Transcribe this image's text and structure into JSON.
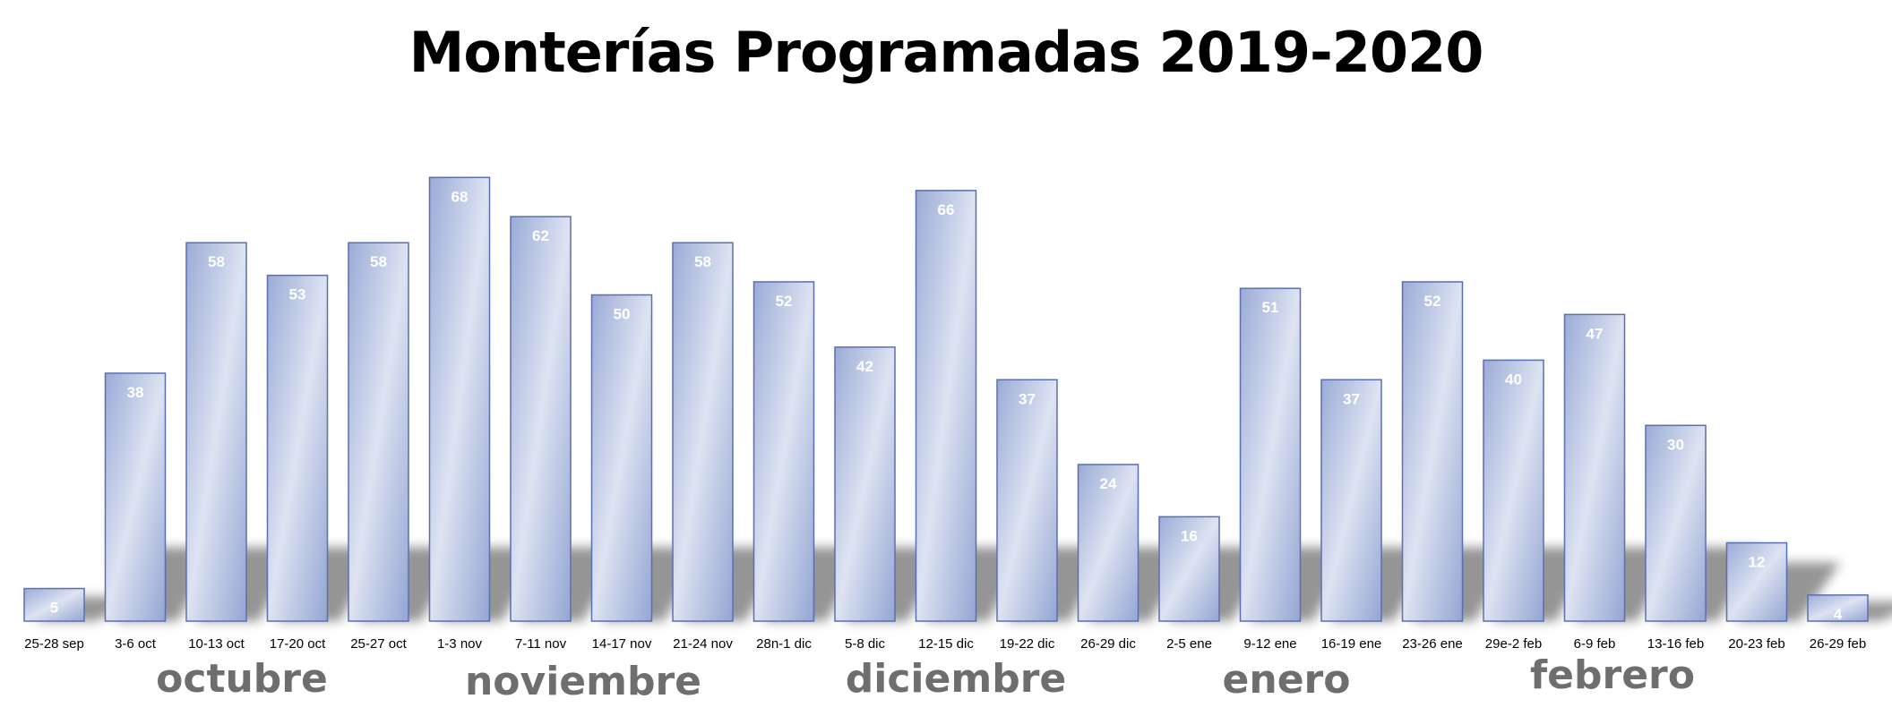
{
  "chart_data": {
    "type": "bar",
    "title": "Monterías Programadas 2019-2020",
    "categories": [
      "25-28 sep",
      "3-6 oct",
      "10-13 oct",
      "17-20 oct",
      "25-27 oct",
      "1-3 nov",
      "7-11 nov",
      "14-17 nov",
      "21-24 nov",
      "28n-1 dic",
      "5-8 dic",
      "12-15 dic",
      "19-22 dic",
      "26-29 dic",
      "2-5 ene",
      "9-12 ene",
      "16-19 ene",
      "23-26 ene",
      "29e-2 feb",
      "6-9 feb",
      "13-16 feb",
      "20-23 feb",
      "26-29 feb"
    ],
    "values": [
      5,
      38,
      58,
      53,
      58,
      68,
      62,
      50,
      58,
      52,
      42,
      66,
      37,
      24,
      16,
      51,
      37,
      52,
      40,
      47,
      30,
      12,
      4
    ],
    "month_labels": [
      "octubre",
      "noviembre",
      "diciembre",
      "enero",
      "febrero"
    ],
    "ylim": [
      0,
      70
    ],
    "grid": false,
    "legend": "none",
    "data_labels": true,
    "colors": {
      "bar_fill_light": "#dfe5f3",
      "bar_fill_dark": "#97a8d3",
      "bar_stroke": "#5a6fb0",
      "month_label": "#6e6e6e",
      "shadow": "#8a8a8a"
    }
  }
}
